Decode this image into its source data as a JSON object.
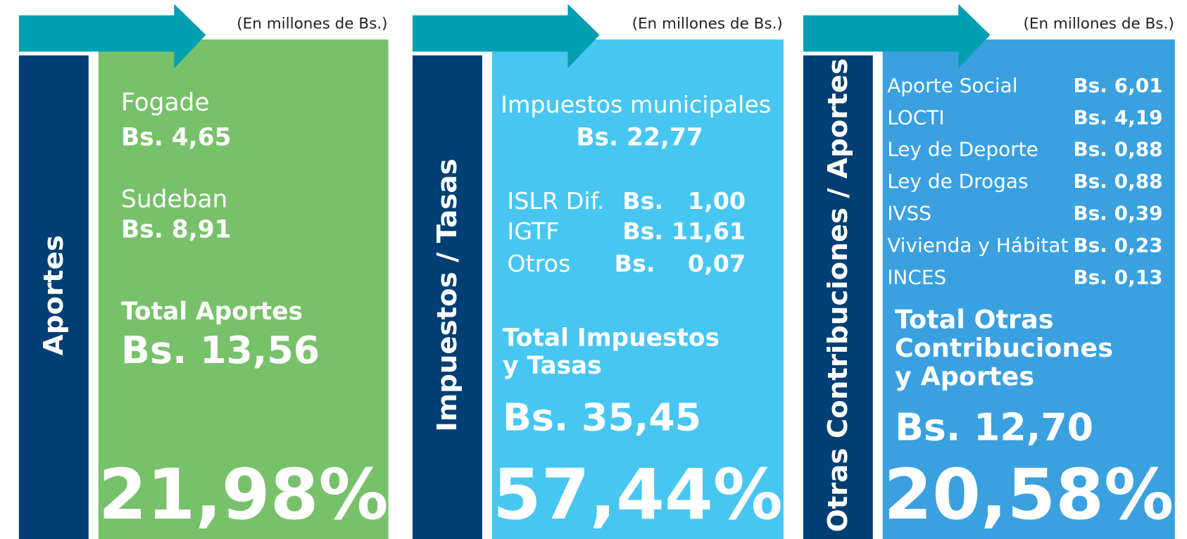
{
  "panels": [
    {
      "side_label": "Aportes",
      "unit_note": "(En millones de Bs.)",
      "items": [
        {
          "label": "Fogade",
          "value": "Bs. 4,65"
        },
        {
          "label": "Sudeban",
          "value": "Bs. 8,91"
        }
      ],
      "total_label": [
        "Total Aportes"
      ],
      "total_value": "Bs. 13,56",
      "percent": "21,98%"
    },
    {
      "side_label": "Impuestos / Tasas",
      "unit_note": "(En millones de Bs.)",
      "items": [
        {
          "label": "Impuestos municipales",
          "value": "Bs. 22,77"
        },
        {
          "label": "ISLR Dif.",
          "value": "Bs.   1,00"
        },
        {
          "label": "IGTF",
          "value": "Bs. 11,61"
        },
        {
          "label": "Otros",
          "value": "Bs.    0,07"
        }
      ],
      "total_label": [
        "Total Impuestos",
        "y Tasas"
      ],
      "total_value": "Bs. 35,45",
      "percent": "57,44%"
    },
    {
      "side_label": "Otras Contribuciones / Aportes",
      "unit_note": "(En millones de Bs.)",
      "items": [
        {
          "label": "Aporte Social",
          "value": "Bs. 6,01"
        },
        {
          "label": "LOCTI",
          "value": "Bs. 4,19"
        },
        {
          "label": "Ley de Deporte",
          "value": "Bs. 0,88"
        },
        {
          "label": "Ley de Drogas",
          "value": "Bs. 0,88"
        },
        {
          "label": "IVSS",
          "value": "Bs. 0,39"
        },
        {
          "label": "Vivienda y Hábitat",
          "value": "Bs. 0,23"
        },
        {
          "label": "INCES",
          "value": "Bs. 0,13"
        }
      ],
      "total_label": [
        "Total Otras",
        "Contribuciones",
        "y Aportes"
      ],
      "total_value": "Bs. 12,70",
      "percent": "20,58%"
    }
  ]
}
